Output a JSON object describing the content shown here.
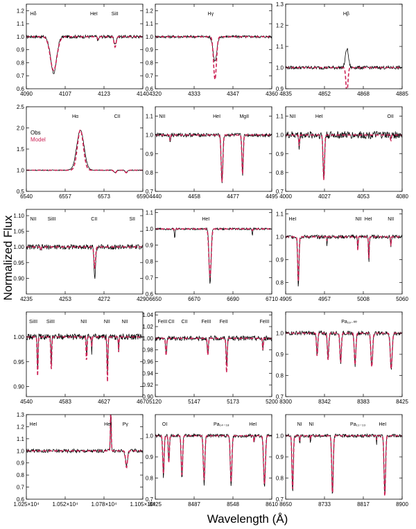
{
  "figure": {
    "ylabel": "Normalized Flux",
    "xlabel": "Wavelength (Å)"
  },
  "colors": {
    "obs": "#000000",
    "model": "#cc2255"
  },
  "chart_data": [
    {
      "type": "line",
      "xlim": [
        4090,
        4140
      ],
      "ylim": [
        0.6,
        1.25
      ],
      "xticks": [
        "4090",
        "4107",
        "4123",
        "4140"
      ],
      "yticks": [
        "0.6",
        "0.7",
        "0.8",
        "0.9",
        "1.0",
        "1.1",
        "1.2"
      ],
      "labels": [
        {
          "text": "Hδ",
          "x": 4093
        },
        {
          "text": "HeI",
          "x": 4119
        },
        {
          "text": "SiII",
          "x": 4128
        }
      ],
      "lines": [
        {
          "c": 4101.7,
          "depth": 0.28,
          "width": 1.8,
          "md": 0.26,
          "mw": 2.0
        },
        {
          "c": 4128.1,
          "depth": 0.06,
          "width": 0.6,
          "md": 0.08,
          "mw": 0.6
        },
        {
          "c": 4120.8,
          "depth": 0.03,
          "width": 0.4,
          "md": 0.02,
          "mw": 0.4
        }
      ],
      "noise": 0.012
    },
    {
      "type": "line",
      "xlim": [
        4320,
        4360
      ],
      "ylim": [
        0.6,
        1.25
      ],
      "xticks": [
        "4320",
        "4333",
        "4347",
        "4360"
      ],
      "yticks": [
        "0.6",
        "0.7",
        "0.8",
        "0.9",
        "1.0",
        "1.1",
        "1.2"
      ],
      "labels": [
        {
          "text": "Hγ",
          "x": 4339
        }
      ],
      "lines": [
        {
          "c": 4340.5,
          "depth": 0.19,
          "width": 0.9,
          "md": 0.33,
          "mw": 0.7
        }
      ],
      "noise": 0.01
    },
    {
      "type": "line",
      "xlim": [
        4835,
        4885
      ],
      "ylim": [
        0.9,
        1.3
      ],
      "xticks": [
        "4835",
        "4852",
        "4868",
        "4885"
      ],
      "yticks": [
        "0.9",
        "1.0",
        "1.1",
        "1.2",
        "1.3"
      ],
      "labels": [
        {
          "text": "Hβ",
          "x": 4861
        }
      ],
      "lines": [
        {
          "c": 4861.3,
          "depth": -0.09,
          "width": 0.9,
          "md": 0.12,
          "mw": 0.6
        }
      ],
      "noise": 0.008
    },
    {
      "type": "line",
      "xlim": [
        6540,
        6590
      ],
      "ylim": [
        0.5,
        2.5
      ],
      "xticks": [
        "6540",
        "6557",
        "6573",
        "6590"
      ],
      "yticks": [
        "0.5",
        "1.0",
        "1.5",
        "2.0",
        "2.5"
      ],
      "labels": [
        {
          "text": "Hα",
          "x": 6561
        },
        {
          "text": "CII",
          "x": 6579
        }
      ],
      "legend": [
        "Obs",
        "Model"
      ],
      "lines": [
        {
          "c": 6563.2,
          "depth": -0.95,
          "width": 2.2,
          "md": -0.95,
          "mw": 1.8
        },
        {
          "c": 6578.1,
          "depth": 0.06,
          "width": 0.7,
          "md": 0.07,
          "mw": 0.7
        },
        {
          "c": 6582.9,
          "depth": 0.05,
          "width": 0.7,
          "md": 0.06,
          "mw": 0.7
        }
      ],
      "noise": 0.01
    },
    {
      "type": "line",
      "xlim": [
        4440,
        4495
      ],
      "ylim": [
        0.7,
        1.15
      ],
      "xticks": [
        "4440",
        "4458",
        "4477",
        "4495"
      ],
      "yticks": [
        "0.7",
        "0.8",
        "0.9",
        "1.0",
        "1.1"
      ],
      "labels": [
        {
          "text": "NII",
          "x": 4443
        },
        {
          "text": "HeI",
          "x": 4469
        },
        {
          "text": "MgII",
          "x": 4482
        }
      ],
      "lines": [
        {
          "c": 4471.5,
          "depth": 0.25,
          "width": 0.55,
          "md": 0.25,
          "mw": 0.55
        },
        {
          "c": 4481.2,
          "depth": 0.21,
          "width": 0.45,
          "md": 0.21,
          "mw": 0.45
        },
        {
          "c": 4447.0,
          "depth": 0.03,
          "width": 0.3,
          "md": 0.03,
          "mw": 0.3
        }
      ],
      "noise": 0.01
    },
    {
      "type": "line",
      "xlim": [
        4000,
        4080
      ],
      "ylim": [
        0.7,
        1.15
      ],
      "xticks": [
        "4000",
        "4027",
        "4053",
        "4080"
      ],
      "yticks": [
        "0.7",
        "0.8",
        "0.9",
        "1.0",
        "1.1"
      ],
      "labels": [
        {
          "text": "NII",
          "x": 4004
        },
        {
          "text": "HeI",
          "x": 4023
        },
        {
          "text": "OII",
          "x": 4072
        }
      ],
      "lines": [
        {
          "c": 4026.2,
          "depth": 0.24,
          "width": 0.7,
          "md": 0.24,
          "mw": 0.7
        },
        {
          "c": 4009.3,
          "depth": 0.08,
          "width": 0.4,
          "md": 0.06,
          "mw": 0.4
        },
        {
          "c": 4072.2,
          "depth": 0.03,
          "width": 0.4,
          "md": 0.03,
          "mw": 0.4
        }
      ],
      "noise": 0.02
    },
    {
      "type": "line",
      "xlim": [
        4235,
        4290
      ],
      "ylim": [
        0.85,
        1.12
      ],
      "xticks": [
        "4235",
        "4253",
        "4272",
        "4290"
      ],
      "yticks": [
        "0.90",
        "0.95",
        "1.00",
        "1.05",
        "1.10"
      ],
      "labels": [
        {
          "text": "NII",
          "x": 4236
        },
        {
          "text": "SiIII",
          "x": 4247
        },
        {
          "text": "CII",
          "x": 4267
        },
        {
          "text": "SII",
          "x": 4285
        }
      ],
      "lines": [
        {
          "c": 4267.3,
          "depth": 0.1,
          "width": 0.5,
          "md": 0.07,
          "mw": 0.5
        },
        {
          "c": 4241.8,
          "depth": 0.015,
          "width": 0.3,
          "md": 0.01,
          "mw": 0.3
        }
      ],
      "noise": 0.008
    },
    {
      "type": "line",
      "xlim": [
        6650,
        6710
      ],
      "ylim": [
        0.6,
        1.12
      ],
      "xticks": [
        "6650",
        "6670",
        "6690",
        "6710"
      ],
      "yticks": [
        "0.6",
        "0.7",
        "0.8",
        "0.9",
        "1.0",
        "1.1"
      ],
      "labels": [
        {
          "text": "HeI",
          "x": 6676
        }
      ],
      "lines": [
        {
          "c": 6678.2,
          "depth": 0.34,
          "width": 0.7,
          "md": 0.3,
          "mw": 0.8
        },
        {
          "c": 6660.0,
          "depth": 0.06,
          "width": 0.3,
          "md": 0.01,
          "mw": 0.3
        },
        {
          "c": 6700.0,
          "depth": 0.04,
          "width": 0.3,
          "md": 0.01,
          "mw": 0.3
        }
      ],
      "noise": 0.006
    },
    {
      "type": "line",
      "xlim": [
        4905,
        5060
      ],
      "ylim": [
        0.75,
        1.12
      ],
      "xticks": [
        "4905",
        "4957",
        "5008",
        "5060"
      ],
      "yticks": [
        "0.8",
        "0.9",
        "1.0",
        "1.1"
      ],
      "labels": [
        {
          "text": "HeI",
          "x": 4913
        },
        {
          "text": "NII",
          "x": 5002
        },
        {
          "text": "HeI",
          "x": 5015
        },
        {
          "text": "NII",
          "x": 5045
        }
      ],
      "lines": [
        {
          "c": 4921.9,
          "depth": 0.22,
          "width": 1.2,
          "md": 0.2,
          "mw": 1.2
        },
        {
          "c": 5015.7,
          "depth": 0.12,
          "width": 0.7,
          "md": 0.1,
          "mw": 0.7
        },
        {
          "c": 5001,
          "depth": 0.05,
          "width": 0.6,
          "md": 0.06,
          "mw": 0.6
        },
        {
          "c": 5045,
          "depth": 0.05,
          "width": 0.6,
          "md": 0.04,
          "mw": 0.6
        },
        {
          "c": 4960,
          "depth": 0.05,
          "width": 0.4,
          "md": 0.02,
          "mw": 0.4
        }
      ],
      "noise": 0.008
    },
    {
      "type": "line",
      "xlim": [
        4540,
        4670
      ],
      "ylim": [
        0.88,
        1.05
      ],
      "xticks": [
        "4540",
        "4583",
        "4627",
        "4670"
      ],
      "yticks": [
        "0.90",
        "0.95",
        "1.00"
      ],
      "labels": [
        {
          "text": "SiIII",
          "x": 4545
        },
        {
          "text": "SiIII",
          "x": 4567
        },
        {
          "text": "NII",
          "x": 4604
        },
        {
          "text": "NII",
          "x": 4630
        },
        {
          "text": "NII",
          "x": 4650
        }
      ],
      "lines": [
        {
          "c": 4552.6,
          "depth": 0.07,
          "width": 0.6,
          "md": 0.08,
          "mw": 0.7
        },
        {
          "c": 4567.8,
          "depth": 0.06,
          "width": 0.6,
          "md": 0.07,
          "mw": 0.7
        },
        {
          "c": 4607.2,
          "depth": 0.04,
          "width": 0.6,
          "md": 0.05,
          "mw": 0.7
        },
        {
          "c": 4630.5,
          "depth": 0.08,
          "width": 0.7,
          "md": 0.09,
          "mw": 0.7
        },
        {
          "c": 4643,
          "depth": 0.03,
          "width": 0.5,
          "md": 0.03,
          "mw": 0.5
        },
        {
          "c": 4613,
          "depth": 0.03,
          "width": 0.5,
          "md": 0.02,
          "mw": 0.5
        }
      ],
      "noise": 0.006
    },
    {
      "type": "line",
      "xlim": [
        5120,
        5200
      ],
      "ylim": [
        0.9,
        1.045
      ],
      "xticks": [
        "5120",
        "5147",
        "5173",
        "5200"
      ],
      "yticks": [
        "0.90",
        "0.92",
        "0.94",
        "0.96",
        "0.98",
        "1.00",
        "1.02",
        "1.04"
      ],
      "labels": [
        {
          "text": "FeIII",
          "x": 5125
        },
        {
          "text": "CII",
          "x": 5131
        },
        {
          "text": "CII",
          "x": 5140
        },
        {
          "text": "FeIII",
          "x": 5155
        },
        {
          "text": "FeII",
          "x": 5167
        },
        {
          "text": "FeIII",
          "x": 5195
        }
      ],
      "lines": [
        {
          "c": 5127.4,
          "depth": 0.03,
          "width": 0.5,
          "md": 0.03,
          "mw": 0.5
        },
        {
          "c": 5156.1,
          "depth": 0.03,
          "width": 0.5,
          "md": 0.03,
          "mw": 0.5
        },
        {
          "c": 5169.0,
          "depth": 0.05,
          "width": 0.5,
          "md": 0.06,
          "mw": 0.5
        },
        {
          "c": 5193.9,
          "depth": 0.02,
          "width": 0.4,
          "md": 0.02,
          "mw": 0.4
        }
      ],
      "noise": 0.004
    },
    {
      "type": "line",
      "xlim": [
        8300,
        8425
      ],
      "ylim": [
        0.7,
        1.1
      ],
      "xticks": [
        "8300",
        "8342",
        "8383",
        "8425"
      ],
      "yticks": [
        "0.7",
        "0.8",
        "0.9",
        "1.0"
      ],
      "labels": [
        {
          "text": "Pa₁₉₋∞",
          "x": 8368
        }
      ],
      "lines": [
        {
          "c": 8345.5,
          "depth": 0.12,
          "width": 1.0,
          "md": 0.13,
          "mw": 1.0
        },
        {
          "c": 8359.0,
          "depth": 0.14,
          "width": 1.1,
          "md": 0.14,
          "mw": 1.1
        },
        {
          "c": 8374.5,
          "depth": 0.15,
          "width": 1.2,
          "md": 0.15,
          "mw": 1.2
        },
        {
          "c": 8392.4,
          "depth": 0.16,
          "width": 1.3,
          "md": 0.16,
          "mw": 1.3
        },
        {
          "c": 8413.3,
          "depth": 0.17,
          "width": 1.4,
          "md": 0.17,
          "mw": 1.4
        },
        {
          "c": 8333.8,
          "depth": 0.11,
          "width": 0.9,
          "md": 0.11,
          "mw": 0.9
        }
      ],
      "noise": 0.01
    },
    {
      "type": "line",
      "xlim": [
        10250,
        11050
      ],
      "ylim": [
        0.6,
        1.3
      ],
      "xticks": [
        "1.025×10⁴",
        "1.052×10⁴",
        "1.078×10⁴",
        "1.105×10⁴"
      ],
      "yticks": [
        "0.6",
        "0.7",
        "0.8",
        "0.9",
        "1.0",
        "1.1",
        "1.2",
        "1.3"
      ],
      "labels": [
        {
          "text": "HeI",
          "x": 10270
        },
        {
          "text": "HeI",
          "x": 10810
        },
        {
          "text": "Pγ",
          "x": 10930
        }
      ],
      "lines": [
        {
          "c": 10830,
          "depth": -0.35,
          "width": 4,
          "md": -0.35,
          "mw": 4
        },
        {
          "c": 10938,
          "depth": 0.12,
          "width": 10,
          "md": 0.14,
          "mw": 9
        }
      ],
      "noise": 0.015
    },
    {
      "type": "line",
      "xlim": [
        8425,
        8610
      ],
      "ylim": [
        0.7,
        1.1
      ],
      "xticks": [
        "8425",
        "8487",
        "8548",
        "8610"
      ],
      "yticks": [
        "0.7",
        "0.8",
        "0.9",
        "1.0"
      ],
      "labels": [
        {
          "text": "OI",
          "x": 8440
        },
        {
          "text": "Pa₁₄₋₁₈",
          "x": 8530
        },
        {
          "text": "HeI",
          "x": 8580
        }
      ],
      "lines": [
        {
          "c": 8437.9,
          "depth": 0.2,
          "width": 1.5,
          "md": 0.18,
          "mw": 1.5
        },
        {
          "c": 8446.5,
          "depth": 0.13,
          "width": 1.2,
          "md": 0.13,
          "mw": 1.2
        },
        {
          "c": 8467.3,
          "depth": 0.21,
          "width": 1.6,
          "md": 0.19,
          "mw": 1.6
        },
        {
          "c": 8502.5,
          "depth": 0.23,
          "width": 1.7,
          "md": 0.21,
          "mw": 1.7
        },
        {
          "c": 8545.4,
          "depth": 0.24,
          "width": 1.8,
          "md": 0.22,
          "mw": 1.8
        },
        {
          "c": 8598.4,
          "depth": 0.25,
          "width": 2.0,
          "md": 0.23,
          "mw": 2.0
        },
        {
          "c": 8581.9,
          "depth": 0.04,
          "width": 0.6,
          "md": 0.04,
          "mw": 0.6
        }
      ],
      "noise": 0.008
    },
    {
      "type": "line",
      "xlim": [
        8650,
        8900
      ],
      "ylim": [
        0.7,
        1.1
      ],
      "xticks": [
        "8650",
        "8733",
        "8817",
        "8900"
      ],
      "yticks": [
        "0.7",
        "0.8",
        "0.9",
        "1.0"
      ],
      "labels": [
        {
          "text": "NI",
          "x": 8680
        },
        {
          "text": "NI",
          "x": 8705
        },
        {
          "text": "Pa₁₁₋₁₃",
          "x": 8805
        },
        {
          "text": "HeI",
          "x": 8858
        }
      ],
      "lines": [
        {
          "c": 8665.0,
          "depth": 0.27,
          "width": 2.0,
          "md": 0.26,
          "mw": 2.0
        },
        {
          "c": 8750.5,
          "depth": 0.28,
          "width": 2.2,
          "md": 0.28,
          "mw": 2.2
        },
        {
          "c": 8862.8,
          "depth": 0.28,
          "width": 2.3,
          "md": 0.29,
          "mw": 2.3
        },
        {
          "c": 8680.3,
          "depth": 0.04,
          "width": 0.8,
          "md": 0.03,
          "mw": 0.8
        },
        {
          "c": 8703.2,
          "depth": 0.03,
          "width": 0.8,
          "md": 0.02,
          "mw": 0.8
        },
        {
          "c": 8845,
          "depth": 0.04,
          "width": 0.8,
          "md": 0.02,
          "mw": 0.8
        }
      ],
      "noise": 0.008
    }
  ]
}
